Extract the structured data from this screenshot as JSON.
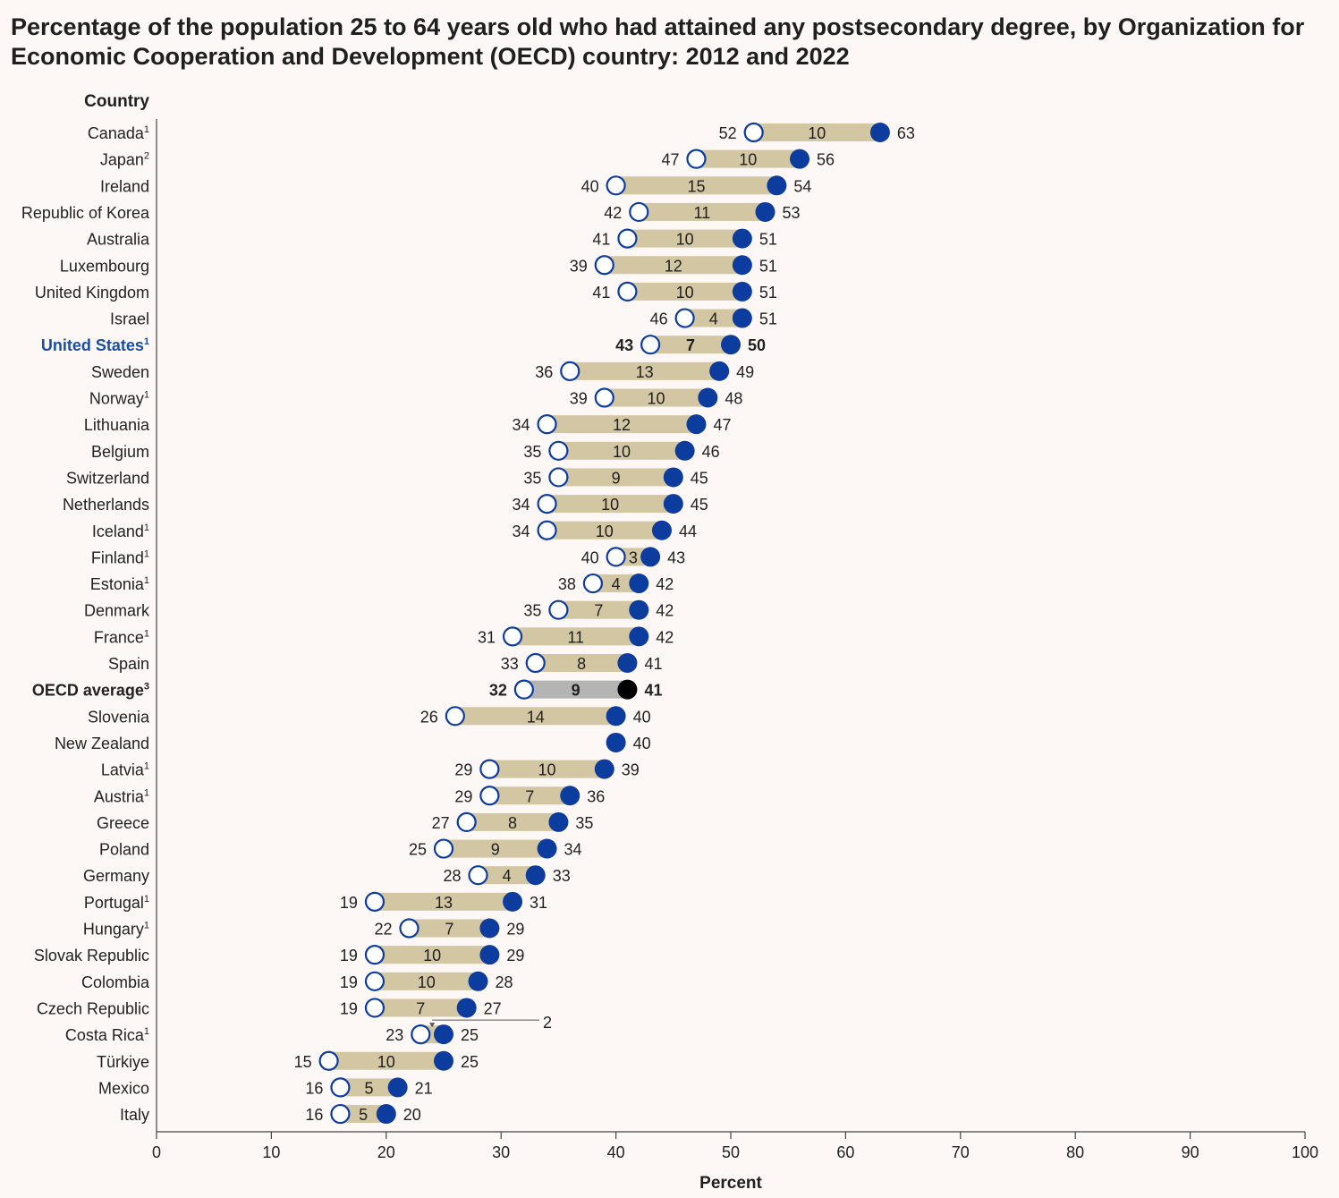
{
  "chart_data": {
    "type": "dumbbell",
    "title": "Percentage of the population 25 to 64 years old who had attained any postsecondary degree, by Organization for Economic Cooperation and Development (OECD) country: 2012 and 2022",
    "ylabel": "Country",
    "xlabel": "Percent",
    "xlim": [
      0,
      100
    ],
    "xticks": [
      "0",
      "10",
      "20",
      "30",
      "40",
      "50",
      "60",
      "70",
      "80",
      "90",
      "100"
    ],
    "grid": false,
    "colors": {
      "bar": "#d3c7a3",
      "bar_average": "#b4b4b4",
      "dot_2022": "#0b3c9e",
      "dot_2022_average": "#000000",
      "dot_2012_stroke": "#0b3c9e",
      "highlight_label": "#1a4ea0"
    },
    "rows": [
      {
        "country": "Canada",
        "sup": "1",
        "v2012": 52,
        "v2022": 63,
        "diff": "10"
      },
      {
        "country": "Japan",
        "sup": "2",
        "v2012": 47,
        "v2022": 56,
        "diff": "10"
      },
      {
        "country": "Ireland",
        "sup": "",
        "v2012": 40,
        "v2022": 54,
        "diff": "15"
      },
      {
        "country": "Republic of Korea",
        "sup": "",
        "v2012": 42,
        "v2022": 53,
        "diff": "11"
      },
      {
        "country": "Australia",
        "sup": "",
        "v2012": 41,
        "v2022": 51,
        "diff": "10"
      },
      {
        "country": "Luxembourg",
        "sup": "",
        "v2012": 39,
        "v2022": 51,
        "diff": "12"
      },
      {
        "country": "United Kingdom",
        "sup": "",
        "v2012": 41,
        "v2022": 51,
        "diff": "10"
      },
      {
        "country": "Israel",
        "sup": "",
        "v2012": 46,
        "v2022": 51,
        "diff": "4"
      },
      {
        "country": "United States",
        "sup": "1",
        "v2012": 43,
        "v2022": 50,
        "diff": "7",
        "highlight": true
      },
      {
        "country": "Sweden",
        "sup": "",
        "v2012": 36,
        "v2022": 49,
        "diff": "13"
      },
      {
        "country": "Norway",
        "sup": "1",
        "v2012": 39,
        "v2022": 48,
        "diff": "10"
      },
      {
        "country": "Lithuania",
        "sup": "",
        "v2012": 34,
        "v2022": 47,
        "diff": "12"
      },
      {
        "country": "Belgium",
        "sup": "",
        "v2012": 35,
        "v2022": 46,
        "diff": "10"
      },
      {
        "country": "Switzerland",
        "sup": "",
        "v2012": 35,
        "v2022": 45,
        "diff": "9"
      },
      {
        "country": "Netherlands",
        "sup": "",
        "v2012": 34,
        "v2022": 45,
        "diff": "10"
      },
      {
        "country": "Iceland",
        "sup": "1",
        "v2012": 34,
        "v2022": 44,
        "diff": "10"
      },
      {
        "country": "Finland",
        "sup": "1",
        "v2012": 40,
        "v2022": 43,
        "diff": "3"
      },
      {
        "country": "Estonia",
        "sup": "1",
        "v2012": 38,
        "v2022": 42,
        "diff": "4"
      },
      {
        "country": "Denmark",
        "sup": "",
        "v2012": 35,
        "v2022": 42,
        "diff": "7"
      },
      {
        "country": "France",
        "sup": "1",
        "v2012": 31,
        "v2022": 42,
        "diff": "11"
      },
      {
        "country": "Spain",
        "sup": "",
        "v2012": 33,
        "v2022": 41,
        "diff": "8"
      },
      {
        "country": "OECD average",
        "sup": "3",
        "v2012": 32,
        "v2022": 41,
        "diff": "9",
        "average": true
      },
      {
        "country": "Slovenia",
        "sup": "",
        "v2012": 26,
        "v2022": 40,
        "diff": "14"
      },
      {
        "country": "New Zealand",
        "sup": "",
        "v2012": null,
        "v2022": 40,
        "diff": ""
      },
      {
        "country": "Latvia",
        "sup": "1",
        "v2012": 29,
        "v2022": 39,
        "diff": "10"
      },
      {
        "country": "Austria",
        "sup": "1",
        "v2012": 29,
        "v2022": 36,
        "diff": "7"
      },
      {
        "country": "Greece",
        "sup": "",
        "v2012": 27,
        "v2022": 35,
        "diff": "8"
      },
      {
        "country": "Poland",
        "sup": "",
        "v2012": 25,
        "v2022": 34,
        "diff": "9"
      },
      {
        "country": "Germany",
        "sup": "",
        "v2012": 28,
        "v2022": 33,
        "diff": "4"
      },
      {
        "country": "Portugal",
        "sup": "1",
        "v2012": 19,
        "v2022": 31,
        "diff": "13"
      },
      {
        "country": "Hungary",
        "sup": "1",
        "v2012": 22,
        "v2022": 29,
        "diff": "7"
      },
      {
        "country": "Slovak Republic",
        "sup": "",
        "v2012": 19,
        "v2022": 29,
        "diff": "10"
      },
      {
        "country": "Colombia",
        "sup": "",
        "v2012": 19,
        "v2022": 28,
        "diff": "10"
      },
      {
        "country": "Czech Republic",
        "sup": "",
        "v2012": 19,
        "v2022": 27,
        "diff": "7"
      },
      {
        "country": "Costa Rica",
        "sup": "1",
        "v2012": 23,
        "v2022": 25,
        "diff": "2",
        "diff_callout": true
      },
      {
        "country": "Türkiye",
        "sup": "",
        "v2012": 15,
        "v2022": 25,
        "diff": "10"
      },
      {
        "country": "Mexico",
        "sup": "",
        "v2012": 16,
        "v2022": 21,
        "diff": "5"
      },
      {
        "country": "Italy",
        "sup": "",
        "v2012": 16,
        "v2022": 20,
        "diff": "5"
      }
    ]
  }
}
